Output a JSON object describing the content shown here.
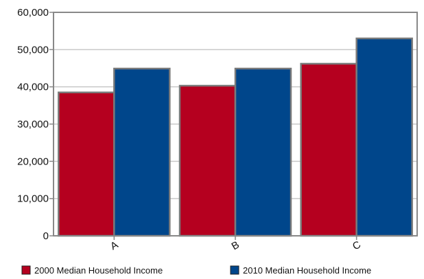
{
  "chart_data": {
    "type": "bar",
    "categories": [
      "A",
      "B",
      "C"
    ],
    "series": [
      {
        "name": "2000 Median Household Income",
        "color": "#b5001f",
        "values": [
          38500,
          40300,
          46200
        ]
      },
      {
        "name": "2010 Median Household Income",
        "color": "#00468b",
        "values": [
          44900,
          44900,
          53000
        ]
      }
    ],
    "ylim": [
      0,
      60000
    ],
    "yticks": [
      0,
      10000,
      20000,
      30000,
      40000,
      50000,
      60000
    ],
    "ytick_labels": [
      "0",
      "10,000",
      "20,000",
      "30,000",
      "40,000",
      "50,000",
      "60,000"
    ],
    "grid": true,
    "legend": "bottom",
    "xlabel": "",
    "ylabel": "",
    "title": ""
  }
}
